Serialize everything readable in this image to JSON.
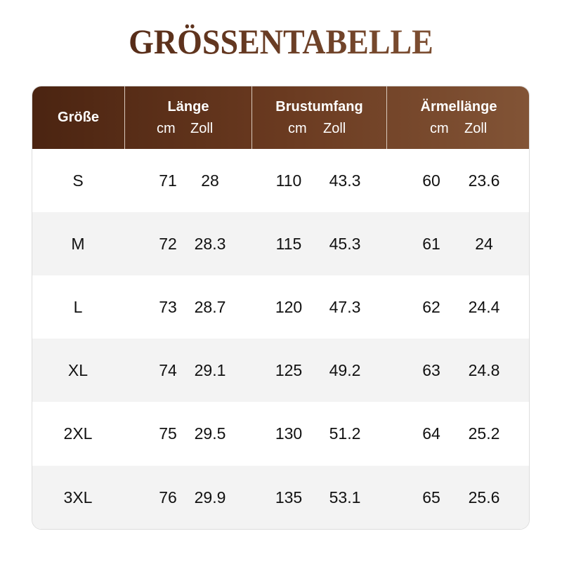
{
  "title": "GRÖSSENTABELLE",
  "colors": {
    "header_start": "#4b2411",
    "header_end": "#825436",
    "alt_row": "#f3f3f3"
  },
  "header": {
    "size": "Größe",
    "columns": [
      {
        "label": "Länge",
        "cm": "cm",
        "inch": "Zoll"
      },
      {
        "label": "Brustumfang",
        "cm": "cm",
        "inch": "Zoll"
      },
      {
        "label": "Ärmellänge",
        "cm": "cm",
        "inch": "Zoll"
      }
    ]
  },
  "rows": [
    {
      "size": "S",
      "v": [
        "71",
        "28",
        "110",
        "43.3",
        "60",
        "23.6"
      ]
    },
    {
      "size": "M",
      "v": [
        "72",
        "28.3",
        "115",
        "45.3",
        "61",
        "24"
      ]
    },
    {
      "size": "L",
      "v": [
        "73",
        "28.7",
        "120",
        "47.3",
        "62",
        "24.4"
      ]
    },
    {
      "size": "XL",
      "v": [
        "74",
        "29.1",
        "125",
        "49.2",
        "63",
        "24.8"
      ]
    },
    {
      "size": "2XL",
      "v": [
        "75",
        "29.5",
        "130",
        "51.2",
        "64",
        "25.2"
      ]
    },
    {
      "size": "3XL",
      "v": [
        "76",
        "29.9",
        "135",
        "53.1",
        "65",
        "25.6"
      ]
    }
  ]
}
